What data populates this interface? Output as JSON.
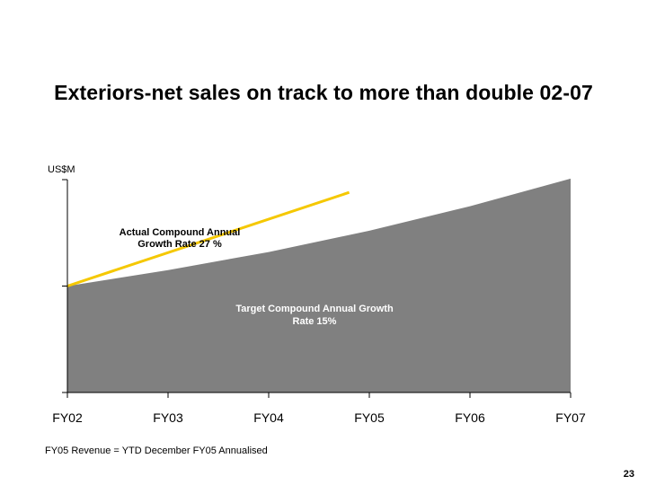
{
  "slide": {
    "title": "Exteriors-net sales on track to more than double 02-07",
    "footnote": "FY05 Revenue = YTD December FY05 Annualised",
    "page_number": "23"
  },
  "chart_data": {
    "type": "area",
    "title": "Exteriors-net sales on track to more than double 02-07",
    "ylabel": "US$M",
    "xlabel": "",
    "categories": [
      "FY02",
      "FY03",
      "FY04",
      "FY05",
      "FY06",
      "FY07"
    ],
    "ylim": [
      0,
      2
    ],
    "y_ticks_labeled": false,
    "grid": false,
    "series": [
      {
        "name": "Target Compound Annual Growth Rate 15%",
        "kind": "area",
        "color": "#808080",
        "x": [
          0,
          1,
          2,
          3,
          4,
          5
        ],
        "values": [
          1.0,
          1.15,
          1.32,
          1.52,
          1.75,
          2.01
        ]
      },
      {
        "name": "Actual Compound Annual Growth Rate 27 %",
        "kind": "line",
        "color": "#F5C800",
        "x": [
          0,
          2.8
        ],
        "values": [
          1.0,
          1.88
        ]
      }
    ],
    "annotations": [
      {
        "text_lines": [
          "Actual Compound Annual",
          "Growth Rate 27 %"
        ],
        "style": "dark"
      },
      {
        "text_lines": [
          "Target Compound Annual Growth",
          "Rate 15%"
        ],
        "style": "light"
      }
    ]
  }
}
